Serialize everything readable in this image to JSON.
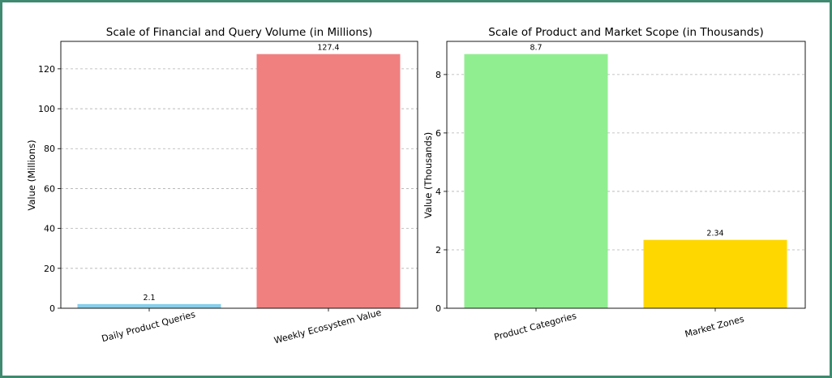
{
  "chart_data": [
    {
      "type": "bar",
      "title": "Scale of Financial and Query Volume (in Millions)",
      "xlabel": "",
      "ylabel": "Value (Millions)",
      "categories": [
        "Daily Product Queries",
        "Weekly Ecosystem Value"
      ],
      "values": [
        2.1,
        127.4
      ],
      "value_labels": [
        "2.1",
        "127.4"
      ],
      "colors": [
        "#87ceeb",
        "#f08080"
      ],
      "ylim": [
        0,
        133.77
      ],
      "yticks": [
        0,
        20,
        40,
        60,
        80,
        100,
        120
      ],
      "grid": true
    },
    {
      "type": "bar",
      "title": "Scale of Product and Market Scope (in Thousands)",
      "xlabel": "",
      "ylabel": "Value (Thousands)",
      "categories": [
        "Product Categories",
        "Market Zones"
      ],
      "values": [
        8.7,
        2.34
      ],
      "value_labels": [
        "8.7",
        "2.34"
      ],
      "colors": [
        "#90ee90",
        "#ffd700"
      ],
      "ylim": [
        0,
        9.135
      ],
      "yticks": [
        0,
        2,
        4,
        6,
        8
      ],
      "grid": true
    }
  ]
}
